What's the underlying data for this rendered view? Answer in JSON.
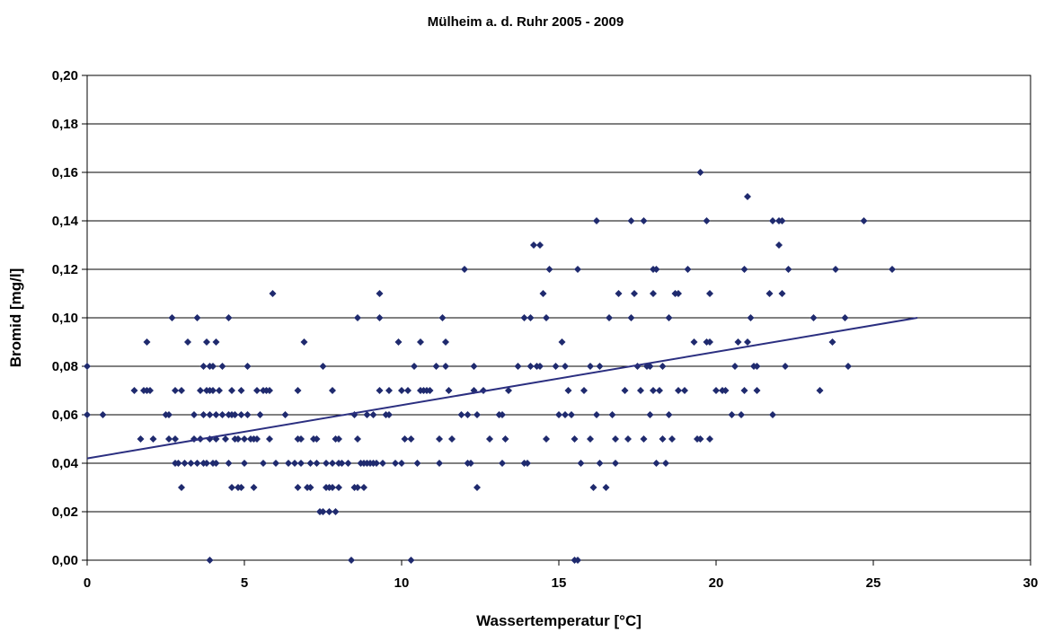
{
  "colors": {
    "marker": "#1f2a6e",
    "trend": "#2b2f80",
    "grid": "#000000",
    "frame": "#000000"
  },
  "chart_data": {
    "type": "scatter",
    "title": "Mülheim a. d. Ruhr 2005 - 2009",
    "xlabel": "Wassertemperatur [°C]",
    "ylabel": "Bromid [mg/l]",
    "xlim": [
      0,
      30
    ],
    "ylim": [
      0,
      0.2
    ],
    "xticks": [
      0,
      5,
      10,
      15,
      20,
      25,
      30
    ],
    "yticks": [
      0,
      0.02,
      0.04,
      0.06,
      0.08,
      0.1,
      0.12,
      0.14,
      0.16,
      0.18,
      0.2
    ],
    "xtick_labels": [
      "0",
      "5",
      "10",
      "15",
      "20",
      "25",
      "30"
    ],
    "ytick_labels": [
      "0,00",
      "0,02",
      "0,04",
      "0,06",
      "0,08",
      "0,10",
      "0,12",
      "0,14",
      "0,16",
      "0,18",
      "0,20"
    ],
    "grid": {
      "horizontal": true,
      "vertical": false
    },
    "legend": "none",
    "trendline": {
      "type": "linear",
      "x": [
        0,
        26.4
      ],
      "y": [
        0.042,
        0.1
      ]
    },
    "series": [
      {
        "points": [
          [
            0,
            0.08
          ],
          [
            0,
            0.06
          ],
          [
            0.5,
            0.06
          ],
          [
            1.5,
            0.07
          ],
          [
            1.7,
            0.05
          ],
          [
            1.8,
            0.07
          ],
          [
            1.9,
            0.07
          ],
          [
            1.9,
            0.09
          ],
          [
            2.0,
            0.07
          ],
          [
            2.1,
            0.05
          ],
          [
            2.5,
            0.06
          ],
          [
            2.6,
            0.06
          ],
          [
            2.6,
            0.05
          ],
          [
            2.7,
            0.1
          ],
          [
            2.8,
            0.07
          ],
          [
            2.8,
            0.05
          ],
          [
            2.8,
            0.04
          ],
          [
            2.9,
            0.04
          ],
          [
            3.0,
            0.07
          ],
          [
            3.0,
            0.03
          ],
          [
            3.1,
            0.04
          ],
          [
            3.2,
            0.09
          ],
          [
            3.3,
            0.04
          ],
          [
            3.4,
            0.06
          ],
          [
            3.5,
            0.04
          ],
          [
            3.4,
            0.05
          ],
          [
            3.5,
            0.1
          ],
          [
            3.6,
            0.05
          ],
          [
            3.6,
            0.07
          ],
          [
            3.7,
            0.08
          ],
          [
            3.7,
            0.06
          ],
          [
            3.7,
            0.04
          ],
          [
            3.8,
            0.07
          ],
          [
            3.8,
            0.09
          ],
          [
            3.8,
            0.04
          ],
          [
            3.9,
            0.08
          ],
          [
            3.9,
            0.07
          ],
          [
            3.9,
            0.05
          ],
          [
            3.9,
            0.06
          ],
          [
            3.9,
            0.0
          ],
          [
            4.0,
            0.08
          ],
          [
            4.0,
            0.07
          ],
          [
            4.0,
            0.04
          ],
          [
            4.1,
            0.09
          ],
          [
            4.1,
            0.05
          ],
          [
            4.1,
            0.06
          ],
          [
            4.1,
            0.04
          ],
          [
            4.2,
            0.07
          ],
          [
            4.3,
            0.08
          ],
          [
            4.3,
            0.06
          ],
          [
            4.4,
            0.05
          ],
          [
            4.5,
            0.04
          ],
          [
            4.5,
            0.06
          ],
          [
            4.5,
            0.1
          ],
          [
            4.6,
            0.06
          ],
          [
            4.6,
            0.07
          ],
          [
            4.6,
            0.03
          ],
          [
            4.7,
            0.06
          ],
          [
            4.7,
            0.05
          ],
          [
            4.8,
            0.03
          ],
          [
            4.8,
            0.05
          ],
          [
            4.9,
            0.06
          ],
          [
            4.9,
            0.07
          ],
          [
            4.9,
            0.03
          ],
          [
            5.0,
            0.05
          ],
          [
            5.0,
            0.04
          ],
          [
            5.1,
            0.08
          ],
          [
            5.1,
            0.06
          ],
          [
            5.2,
            0.05
          ],
          [
            5.3,
            0.05
          ],
          [
            5.3,
            0.03
          ],
          [
            5.4,
            0.07
          ],
          [
            5.4,
            0.05
          ],
          [
            5.5,
            0.06
          ],
          [
            5.6,
            0.04
          ],
          [
            5.6,
            0.07
          ],
          [
            5.7,
            0.07
          ],
          [
            5.8,
            0.05
          ],
          [
            5.8,
            0.07
          ],
          [
            5.9,
            0.11
          ],
          [
            6.0,
            0.04
          ],
          [
            6.3,
            0.06
          ],
          [
            6.4,
            0.04
          ],
          [
            6.6,
            0.04
          ],
          [
            6.7,
            0.07
          ],
          [
            6.7,
            0.05
          ],
          [
            6.7,
            0.03
          ],
          [
            6.8,
            0.05
          ],
          [
            6.8,
            0.04
          ],
          [
            6.9,
            0.09
          ],
          [
            7.0,
            0.03
          ],
          [
            7.1,
            0.04
          ],
          [
            7.1,
            0.03
          ],
          [
            7.2,
            0.05
          ],
          [
            7.3,
            0.05
          ],
          [
            7.3,
            0.04
          ],
          [
            7.4,
            0.02
          ],
          [
            7.5,
            0.08
          ],
          [
            7.5,
            0.02
          ],
          [
            7.6,
            0.03
          ],
          [
            7.6,
            0.04
          ],
          [
            7.7,
            0.03
          ],
          [
            7.7,
            0.02
          ],
          [
            7.8,
            0.07
          ],
          [
            7.8,
            0.04
          ],
          [
            7.8,
            0.03
          ],
          [
            7.9,
            0.05
          ],
          [
            7.9,
            0.02
          ],
          [
            8.0,
            0.04
          ],
          [
            8.0,
            0.03
          ],
          [
            8.0,
            0.05
          ],
          [
            8.1,
            0.04
          ],
          [
            8.3,
            0.04
          ],
          [
            8.4,
            0.0
          ],
          [
            8.5,
            0.06
          ],
          [
            8.5,
            0.03
          ],
          [
            8.6,
            0.03
          ],
          [
            8.6,
            0.05
          ],
          [
            8.6,
            0.1
          ],
          [
            8.7,
            0.04
          ],
          [
            8.8,
            0.04
          ],
          [
            8.8,
            0.03
          ],
          [
            8.9,
            0.04
          ],
          [
            8.9,
            0.06
          ],
          [
            9.0,
            0.04
          ],
          [
            9.1,
            0.04
          ],
          [
            9.1,
            0.06
          ],
          [
            9.2,
            0.04
          ],
          [
            9.3,
            0.07
          ],
          [
            9.3,
            0.1
          ],
          [
            9.3,
            0.11
          ],
          [
            9.4,
            0.04
          ],
          [
            9.5,
            0.06
          ],
          [
            9.6,
            0.07
          ],
          [
            9.6,
            0.06
          ],
          [
            9.8,
            0.04
          ],
          [
            9.9,
            0.09
          ],
          [
            10.0,
            0.07
          ],
          [
            10.0,
            0.04
          ],
          [
            10.1,
            0.05
          ],
          [
            10.2,
            0.07
          ],
          [
            10.3,
            0.0
          ],
          [
            10.3,
            0.05
          ],
          [
            10.4,
            0.08
          ],
          [
            10.5,
            0.04
          ],
          [
            10.6,
            0.07
          ],
          [
            10.6,
            0.09
          ],
          [
            10.7,
            0.07
          ],
          [
            10.8,
            0.07
          ],
          [
            10.9,
            0.07
          ],
          [
            11.1,
            0.08
          ],
          [
            11.2,
            0.04
          ],
          [
            11.2,
            0.05
          ],
          [
            11.3,
            0.1
          ],
          [
            11.4,
            0.08
          ],
          [
            11.4,
            0.09
          ],
          [
            11.5,
            0.07
          ],
          [
            11.6,
            0.05
          ],
          [
            11.9,
            0.06
          ],
          [
            12.0,
            0.12
          ],
          [
            12.1,
            0.04
          ],
          [
            12.1,
            0.06
          ],
          [
            12.2,
            0.04
          ],
          [
            12.3,
            0.08
          ],
          [
            12.3,
            0.07
          ],
          [
            12.4,
            0.06
          ],
          [
            12.4,
            0.03
          ],
          [
            12.6,
            0.07
          ],
          [
            12.8,
            0.05
          ],
          [
            13.1,
            0.06
          ],
          [
            13.2,
            0.04
          ],
          [
            13.2,
            0.06
          ],
          [
            13.3,
            0.05
          ],
          [
            13.4,
            0.07
          ],
          [
            13.7,
            0.08
          ],
          [
            13.9,
            0.1
          ],
          [
            13.9,
            0.04
          ],
          [
            14.0,
            0.04
          ],
          [
            14.1,
            0.08
          ],
          [
            14.1,
            0.1
          ],
          [
            14.2,
            0.13
          ],
          [
            14.3,
            0.08
          ],
          [
            14.4,
            0.13
          ],
          [
            14.4,
            0.08
          ],
          [
            14.5,
            0.11
          ],
          [
            14.6,
            0.1
          ],
          [
            14.6,
            0.05
          ],
          [
            14.7,
            0.12
          ],
          [
            14.9,
            0.08
          ],
          [
            15.0,
            0.06
          ],
          [
            15.1,
            0.09
          ],
          [
            15.2,
            0.08
          ],
          [
            15.2,
            0.06
          ],
          [
            15.3,
            0.07
          ],
          [
            15.4,
            0.06
          ],
          [
            15.5,
            0.0
          ],
          [
            15.5,
            0.05
          ],
          [
            15.6,
            0.0
          ],
          [
            15.6,
            0.12
          ],
          [
            15.7,
            0.04
          ],
          [
            15.8,
            0.07
          ],
          [
            16.0,
            0.08
          ],
          [
            16.0,
            0.05
          ],
          [
            16.1,
            0.03
          ],
          [
            16.2,
            0.14
          ],
          [
            16.2,
            0.06
          ],
          [
            16.3,
            0.08
          ],
          [
            16.3,
            0.04
          ],
          [
            16.5,
            0.03
          ],
          [
            16.6,
            0.1
          ],
          [
            16.7,
            0.06
          ],
          [
            16.8,
            0.05
          ],
          [
            16.8,
            0.04
          ],
          [
            16.9,
            0.11
          ],
          [
            17.1,
            0.07
          ],
          [
            17.2,
            0.05
          ],
          [
            17.3,
            0.1
          ],
          [
            17.3,
            0.14
          ],
          [
            17.4,
            0.11
          ],
          [
            17.5,
            0.08
          ],
          [
            17.6,
            0.07
          ],
          [
            17.7,
            0.14
          ],
          [
            17.7,
            0.05
          ],
          [
            17.8,
            0.08
          ],
          [
            17.9,
            0.06
          ],
          [
            17.9,
            0.08
          ],
          [
            18.0,
            0.12
          ],
          [
            18.0,
            0.07
          ],
          [
            18.0,
            0.11
          ],
          [
            18.1,
            0.04
          ],
          [
            18.1,
            0.12
          ],
          [
            18.2,
            0.07
          ],
          [
            18.3,
            0.08
          ],
          [
            18.3,
            0.05
          ],
          [
            18.4,
            0.04
          ],
          [
            18.5,
            0.1
          ],
          [
            18.5,
            0.06
          ],
          [
            18.6,
            0.05
          ],
          [
            18.7,
            0.11
          ],
          [
            18.8,
            0.07
          ],
          [
            18.8,
            0.11
          ],
          [
            19.0,
            0.07
          ],
          [
            19.1,
            0.12
          ],
          [
            19.3,
            0.09
          ],
          [
            19.4,
            0.05
          ],
          [
            19.5,
            0.16
          ],
          [
            19.5,
            0.05
          ],
          [
            19.7,
            0.09
          ],
          [
            19.7,
            0.14
          ],
          [
            19.8,
            0.11
          ],
          [
            19.8,
            0.09
          ],
          [
            19.8,
            0.05
          ],
          [
            20.0,
            0.07
          ],
          [
            20.2,
            0.07
          ],
          [
            20.3,
            0.07
          ],
          [
            20.5,
            0.06
          ],
          [
            20.6,
            0.08
          ],
          [
            20.7,
            0.09
          ],
          [
            20.8,
            0.06
          ],
          [
            20.9,
            0.12
          ],
          [
            20.9,
            0.07
          ],
          [
            21.0,
            0.15
          ],
          [
            21.0,
            0.09
          ],
          [
            21.1,
            0.1
          ],
          [
            21.2,
            0.08
          ],
          [
            21.3,
            0.07
          ],
          [
            21.3,
            0.08
          ],
          [
            21.7,
            0.11
          ],
          [
            21.8,
            0.14
          ],
          [
            21.8,
            0.06
          ],
          [
            22.0,
            0.14
          ],
          [
            22.0,
            0.13
          ],
          [
            22.1,
            0.11
          ],
          [
            22.1,
            0.14
          ],
          [
            22.2,
            0.08
          ],
          [
            22.3,
            0.12
          ],
          [
            23.1,
            0.1
          ],
          [
            23.3,
            0.07
          ],
          [
            23.7,
            0.09
          ],
          [
            23.8,
            0.12
          ],
          [
            24.1,
            0.1
          ],
          [
            24.2,
            0.08
          ],
          [
            24.7,
            0.14
          ],
          [
            25.6,
            0.12
          ]
        ]
      }
    ]
  }
}
